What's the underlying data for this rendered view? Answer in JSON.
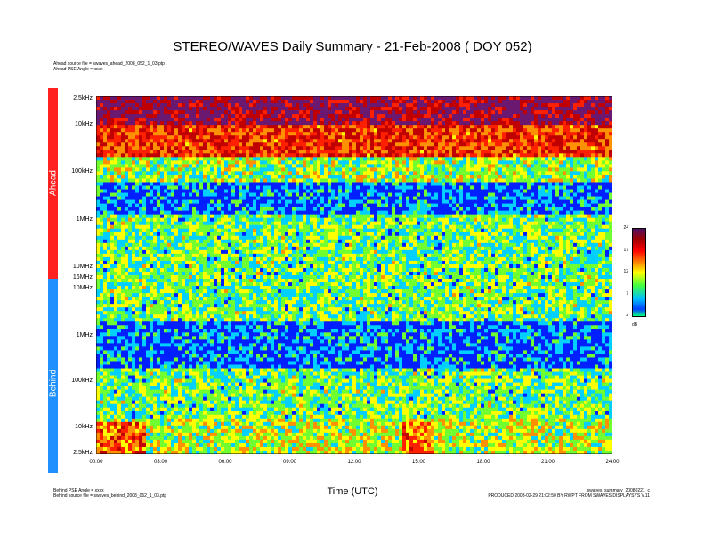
{
  "chart_data": {
    "type": "heatmap",
    "title": "STEREO/WAVES Daily Summary - 21-Feb-2008 ( DOY 052)",
    "xlabel": "Time (UTC)",
    "x_ticks": [
      "00:00",
      "03:00",
      "06:00",
      "09:00",
      "12:00",
      "15:00",
      "18:00",
      "21:00",
      "24:00"
    ],
    "panels": [
      {
        "name": "Ahead",
        "color": "#ff2020",
        "y_ticks": [
          "2.5kHz",
          "10kHz",
          "100kHz",
          "1MHz",
          "10MHz",
          "16MHz"
        ],
        "source_file": "Ahead source file = swaves_ahead_2008_052_1_03.ptp",
        "pse_angle": "Ahead PSE Angle = xxxx"
      },
      {
        "name": "Behind",
        "color": "#2090ff",
        "y_ticks": [
          "10MHz",
          "1MHz",
          "100kHz",
          "10kHz",
          "2.5kHz"
        ],
        "source_file": "Behind source file = swaves_behind_2008_052_1_03.ptp",
        "pse_angle": "Behind PSE Angle = xxxx"
      }
    ],
    "colorbar": {
      "unit": "dB",
      "ticks": [
        "24",
        "17",
        "12",
        "7",
        "2"
      ],
      "range": [
        2,
        24
      ]
    },
    "footer_right": [
      "swaves_summary_20080221_c",
      "PRODUCED 2008-02-29 21:02:50 BY RWPT FROM SWAVES DISPLAYSYS V.11"
    ]
  }
}
